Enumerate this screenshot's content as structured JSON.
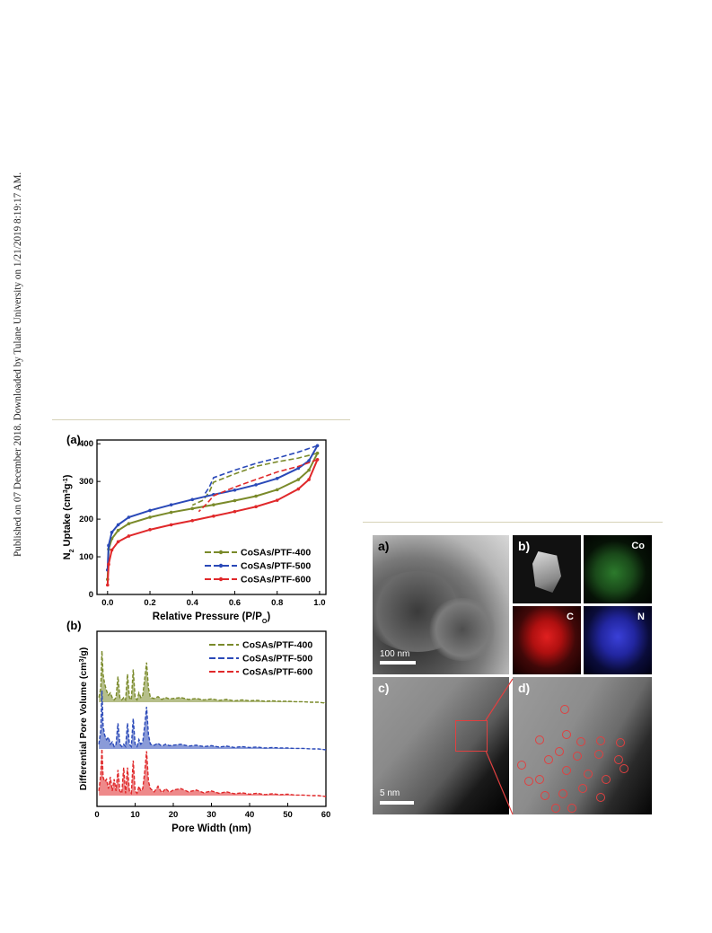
{
  "side_note": "Published on 07 December 2018. Downloaded by Tulane University on 1/21/2019 8:19:17 AM.",
  "figure_left": {
    "colors": {
      "s400": "#7a8a2a",
      "s500": "#2a49b8",
      "s600": "#e0282a"
    },
    "chart_data": [
      {
        "type": "line",
        "panel_label": "(a)",
        "xlabel": "Relative Pressure (P/P0)",
        "ylabel": "N2 Uptake (cm3g-1)",
        "xlim": [
          -0.05,
          1.03
        ],
        "ylim": [
          0,
          410
        ],
        "xticks": [
          "0.0",
          "0.2",
          "0.4",
          "0.6",
          "0.8",
          "1.0"
        ],
        "yticks": [
          "0",
          "100",
          "200",
          "300",
          "400"
        ],
        "legend": "bottom-right",
        "series": [
          {
            "name": "CoSAs/PTF-400",
            "color": "#7a8a2a",
            "adsorption": [
              [
                0.0,
                40
              ],
              [
                0.005,
                120
              ],
              [
                0.02,
                148
              ],
              [
                0.05,
                170
              ],
              [
                0.1,
                188
              ],
              [
                0.2,
                205
              ],
              [
                0.3,
                218
              ],
              [
                0.4,
                228
              ],
              [
                0.5,
                238
              ],
              [
                0.6,
                249
              ],
              [
                0.7,
                261
              ],
              [
                0.8,
                278
              ],
              [
                0.9,
                305
              ],
              [
                0.95,
                330
              ],
              [
                0.99,
                375
              ]
            ],
            "desorption": [
              [
                0.99,
                375
              ],
              [
                0.9,
                362
              ],
              [
                0.8,
                352
              ],
              [
                0.7,
                340
              ],
              [
                0.6,
                320
              ],
              [
                0.5,
                298
              ],
              [
                0.48,
                272
              ],
              [
                0.45,
                250
              ],
              [
                0.4,
                237
              ]
            ]
          },
          {
            "name": "CoSAs/PTF-500",
            "color": "#2a49b8",
            "adsorption": [
              [
                0.0,
                65
              ],
              [
                0.005,
                130
              ],
              [
                0.02,
                165
              ],
              [
                0.05,
                185
              ],
              [
                0.1,
                205
              ],
              [
                0.2,
                223
              ],
              [
                0.3,
                238
              ],
              [
                0.4,
                252
              ],
              [
                0.5,
                265
              ],
              [
                0.6,
                277
              ],
              [
                0.7,
                291
              ],
              [
                0.8,
                308
              ],
              [
                0.9,
                335
              ],
              [
                0.95,
                355
              ],
              [
                0.99,
                395
              ]
            ],
            "desorption": [
              [
                0.99,
                395
              ],
              [
                0.9,
                378
              ],
              [
                0.8,
                362
              ],
              [
                0.7,
                348
              ],
              [
                0.6,
                330
              ],
              [
                0.5,
                310
              ],
              [
                0.48,
                285
              ],
              [
                0.46,
                268
              ]
            ]
          },
          {
            "name": "CoSAs/PTF-600",
            "color": "#e0282a",
            "adsorption": [
              [
                0.0,
                25
              ],
              [
                0.005,
                80
              ],
              [
                0.02,
                118
              ],
              [
                0.05,
                140
              ],
              [
                0.1,
                155
              ],
              [
                0.2,
                172
              ],
              [
                0.3,
                185
              ],
              [
                0.4,
                196
              ],
              [
                0.5,
                208
              ],
              [
                0.6,
                220
              ],
              [
                0.7,
                233
              ],
              [
                0.8,
                250
              ],
              [
                0.9,
                280
              ],
              [
                0.95,
                305
              ],
              [
                0.99,
                358
              ]
            ],
            "desorption": [
              [
                0.99,
                358
              ],
              [
                0.9,
                340
              ],
              [
                0.8,
                325
              ],
              [
                0.7,
                305
              ],
              [
                0.6,
                285
              ],
              [
                0.5,
                262
              ],
              [
                0.47,
                242
              ],
              [
                0.43,
                220
              ]
            ]
          }
        ]
      },
      {
        "type": "line",
        "panel_label": "(b)",
        "xlabel": "Pore Width (nm)",
        "ylabel": "Differential Pore Volume (cm3/g)",
        "xlim": [
          0,
          60
        ],
        "xticks": [
          "0",
          "10",
          "20",
          "30",
          "40",
          "50",
          "60"
        ],
        "legend": "top-right",
        "series": [
          {
            "name": "CoSAs/PTF-400",
            "color": "#7a8a2a",
            "offset": 2.0,
            "x": [
              0.5,
              1.0,
              1.3,
              1.6,
              2.0,
              2.5,
              3.0,
              3.5,
              4.0,
              4.5,
              5.0,
              5.5,
              6.0,
              6.5,
              7.0,
              7.5,
              8.0,
              8.5,
              9.0,
              9.5,
              10.0,
              10.5,
              11.0,
              11.5,
              12.0,
              12.5,
              13.0,
              13.5,
              14.0,
              15.0,
              16.0,
              17.0,
              18.0,
              19.0,
              20.0,
              22.0,
              24.0,
              26.0,
              28.0,
              30.0,
              32.0,
              34.0,
              36.0,
              38.0,
              40.0,
              42.0,
              44.0,
              46.0,
              48.0,
              50.0,
              52.0,
              54.0,
              56.0,
              58.0,
              60.0
            ],
            "y": [
              0.1,
              0.3,
              1.1,
              0.6,
              0.4,
              0.25,
              0.15,
              0.2,
              0.1,
              0.05,
              0.1,
              0.55,
              0.1,
              0.05,
              0.1,
              0.05,
              0.6,
              0.1,
              0.05,
              0.7,
              0.1,
              0.05,
              0.2,
              0.1,
              0.15,
              0.5,
              0.85,
              0.3,
              0.1,
              0.08,
              0.12,
              0.06,
              0.1,
              0.07,
              0.08,
              0.1,
              0.06,
              0.08,
              0.05,
              0.07,
              0.04,
              0.06,
              0.03,
              0.05,
              0.03,
              0.04,
              0.02,
              0.03,
              0.02,
              0.02,
              0.01,
              0.01,
              0.0,
              0.0,
              -0.02
            ]
          },
          {
            "name": "CoSAs/PTF-500",
            "color": "#2a49b8",
            "offset": 1.0,
            "x": [
              0.5,
              1.0,
              1.3,
              1.6,
              2.0,
              2.5,
              3.0,
              3.5,
              4.0,
              4.5,
              5.0,
              5.5,
              6.0,
              6.5,
              7.0,
              7.5,
              8.0,
              8.5,
              9.0,
              9.5,
              10.0,
              10.5,
              11.0,
              11.5,
              12.0,
              12.5,
              13.0,
              13.5,
              14.0,
              15.0,
              16.0,
              17.0,
              18.0,
              19.0,
              20.0,
              22.0,
              24.0,
              26.0,
              28.0,
              30.0,
              32.0,
              34.0,
              36.0,
              38.0,
              40.0,
              42.0,
              44.0,
              46.0,
              48.0,
              50.0,
              52.0,
              54.0,
              56.0,
              58.0,
              60.0
            ],
            "y": [
              0.1,
              0.4,
              1.25,
              0.5,
              0.3,
              0.2,
              0.25,
              0.1,
              0.15,
              0.05,
              0.1,
              0.55,
              0.1,
              0.05,
              0.1,
              0.05,
              0.55,
              0.1,
              0.05,
              0.65,
              0.1,
              0.05,
              0.2,
              0.1,
              0.15,
              0.5,
              0.9,
              0.3,
              0.1,
              0.08,
              0.12,
              0.06,
              0.1,
              0.07,
              0.08,
              0.1,
              0.06,
              0.08,
              0.05,
              0.07,
              0.04,
              0.06,
              0.03,
              0.05,
              0.03,
              0.04,
              0.02,
              0.03,
              0.02,
              0.02,
              0.01,
              0.01,
              0.0,
              0.0,
              -0.02
            ]
          },
          {
            "name": "CoSAs/PTF-600",
            "color": "#e0282a",
            "offset": 0.0,
            "x": [
              0.5,
              1.0,
              1.3,
              1.6,
              2.0,
              2.5,
              3.0,
              3.5,
              4.0,
              4.5,
              5.0,
              5.5,
              6.0,
              6.5,
              7.0,
              7.5,
              8.0,
              8.5,
              9.0,
              9.5,
              10.0,
              10.5,
              11.0,
              11.5,
              12.0,
              12.5,
              13.0,
              13.5,
              14.0,
              15.0,
              16.0,
              17.0,
              18.0,
              19.0,
              20.0,
              22.0,
              24.0,
              26.0,
              28.0,
              30.0,
              32.0,
              34.0,
              36.0,
              38.0,
              40.0,
              42.0,
              44.0,
              46.0,
              48.0,
              50.0,
              52.0,
              54.0,
              56.0,
              58.0,
              60.0
            ],
            "y": [
              0.1,
              0.45,
              1.0,
              0.4,
              0.3,
              0.35,
              0.15,
              0.4,
              0.1,
              0.35,
              0.1,
              0.55,
              0.1,
              0.05,
              0.6,
              0.05,
              0.6,
              0.1,
              0.05,
              0.75,
              0.1,
              0.05,
              0.2,
              0.1,
              0.15,
              0.5,
              0.95,
              0.3,
              0.15,
              0.08,
              0.2,
              0.06,
              0.15,
              0.07,
              0.12,
              0.15,
              0.08,
              0.12,
              0.06,
              0.1,
              0.05,
              0.08,
              0.04,
              0.06,
              0.03,
              0.05,
              0.02,
              0.04,
              0.02,
              0.03,
              0.01,
              0.01,
              0.0,
              0.0,
              -0.02
            ]
          }
        ]
      }
    ]
  },
  "figure_right": {
    "panels": [
      {
        "label": "a)",
        "scale": "100 nm"
      },
      {
        "label": "b)",
        "elements": [
          "Co",
          "C",
          "N"
        ]
      },
      {
        "label": "c)",
        "scale": "5 nm"
      },
      {
        "label": "d)"
      }
    ],
    "highlight_color": "#e04040"
  }
}
